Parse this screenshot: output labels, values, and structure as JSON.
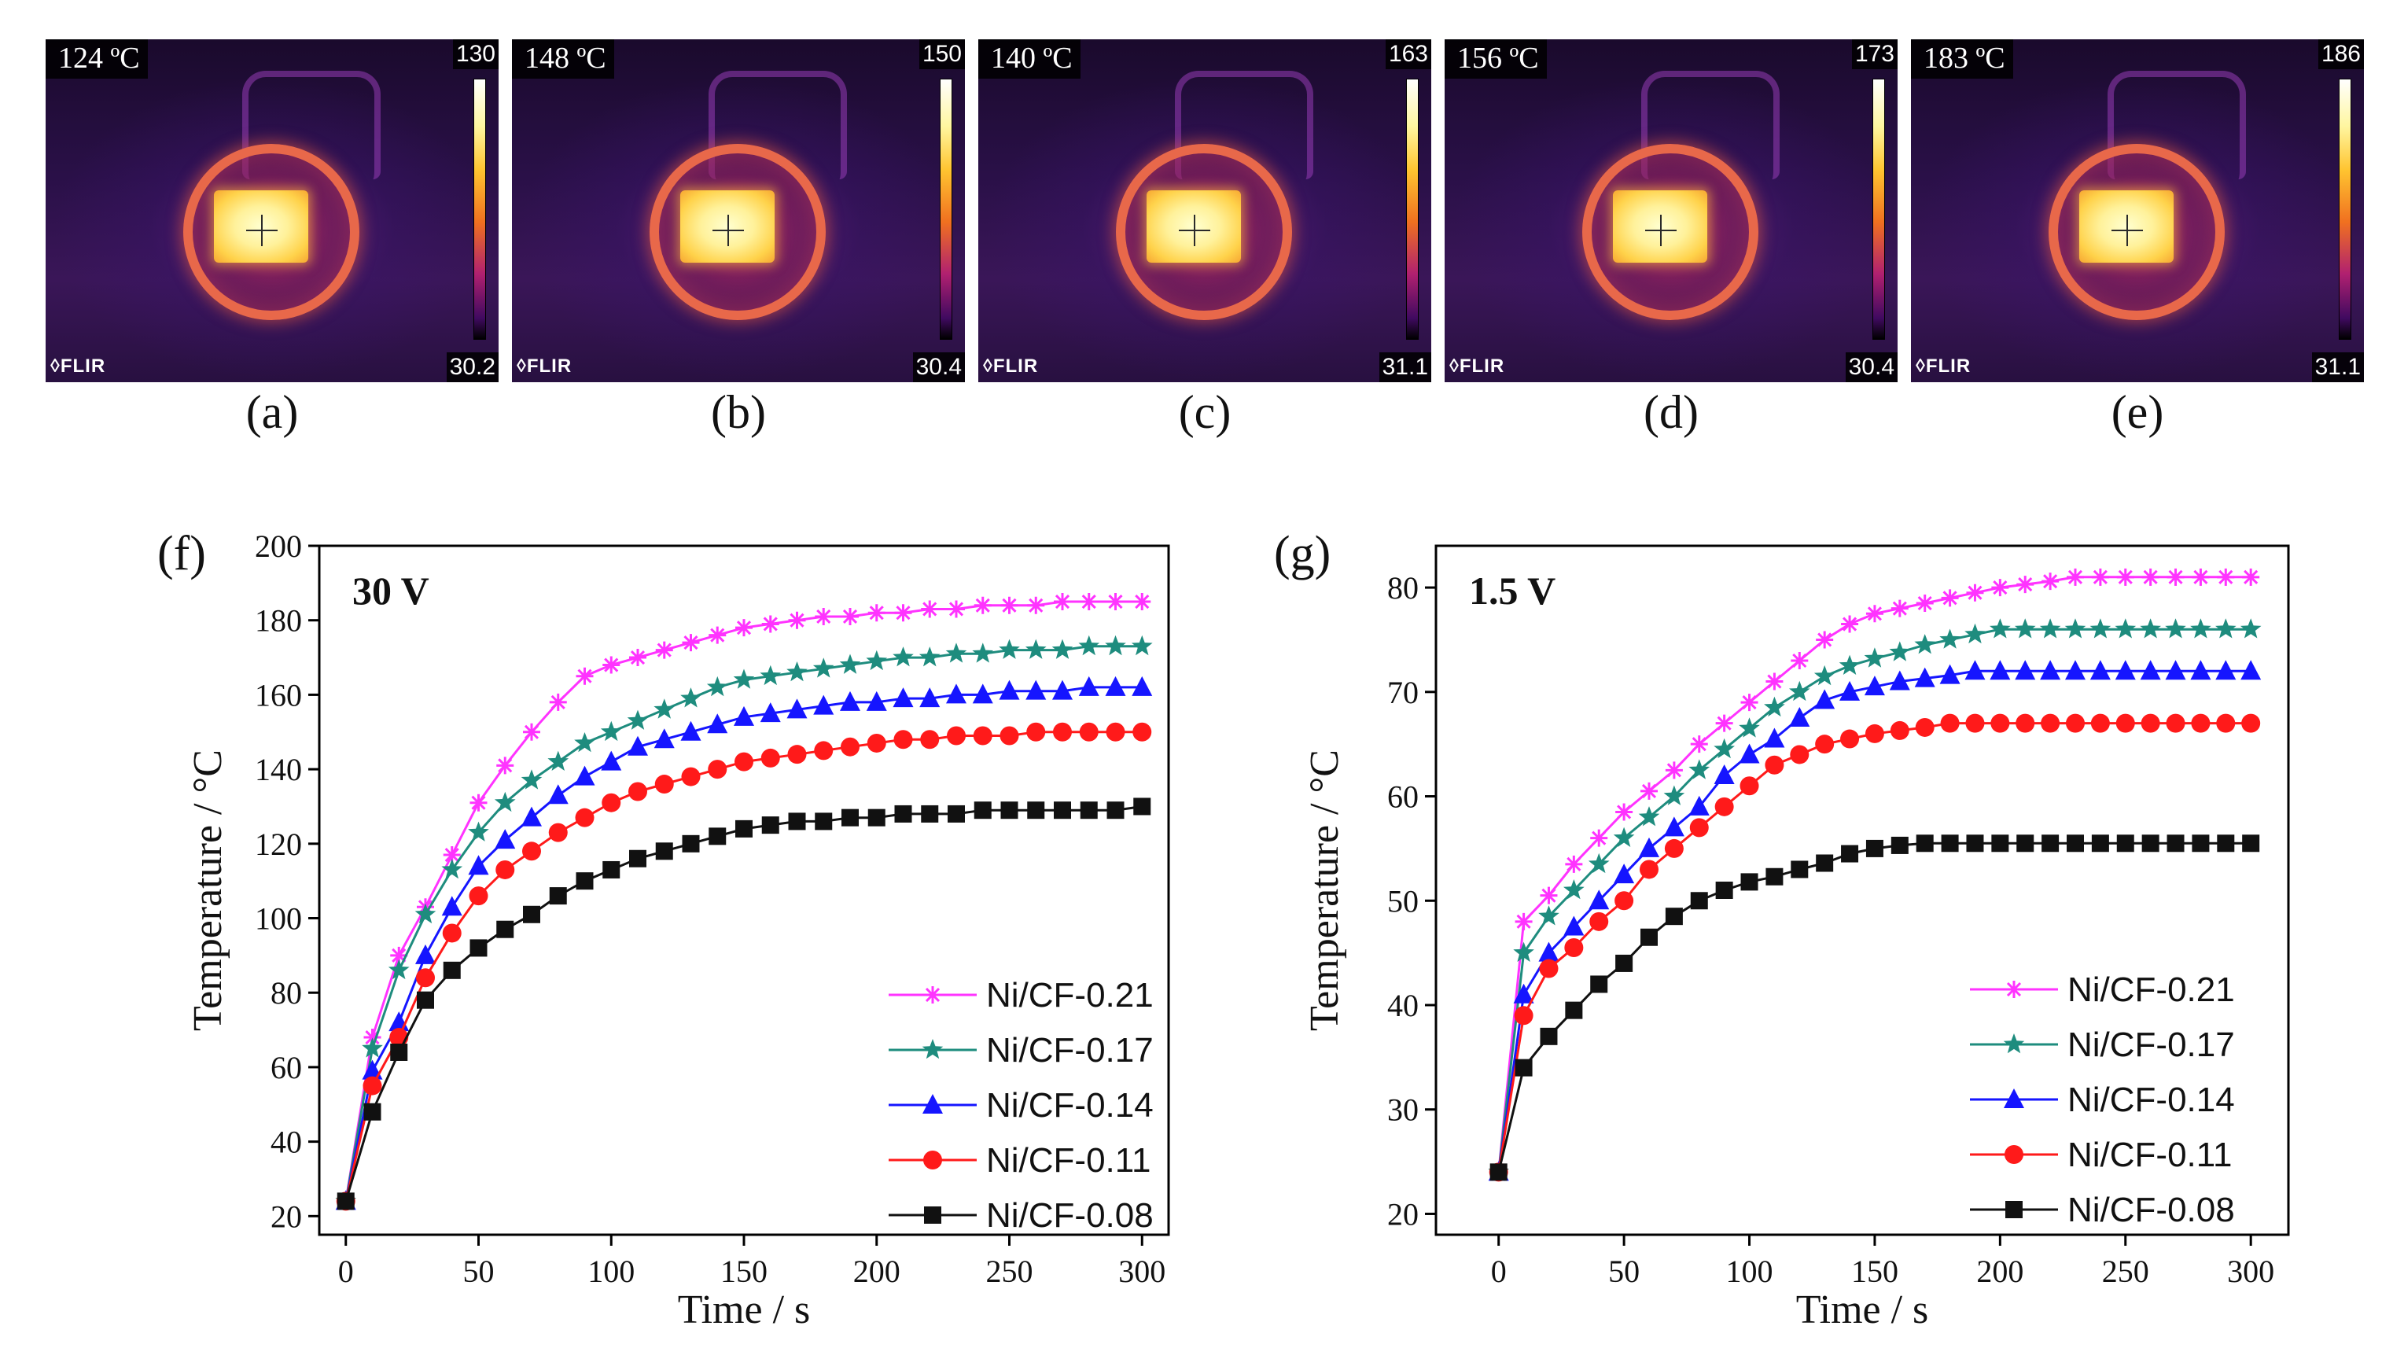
{
  "thermal_panels": [
    {
      "label": "(a)",
      "temp": "124 ºC",
      "max": "130",
      "min": "30.2",
      "logo": "FLIR"
    },
    {
      "label": "(b)",
      "temp": "148 ºC",
      "max": "150",
      "min": "30.4",
      "logo": "FLIR"
    },
    {
      "label": "(c)",
      "temp": "140 ºC",
      "max": "163",
      "min": "31.1",
      "logo": "FLIR"
    },
    {
      "label": "(d)",
      "temp": "156 ºC",
      "max": "173",
      "min": "30.4",
      "logo": "FLIR"
    },
    {
      "label": "(e)",
      "temp": "183 ºC",
      "max": "186",
      "min": "31.1",
      "logo": "FLIR"
    }
  ],
  "chart_data": [
    {
      "type": "line",
      "panel": "(f)",
      "title": "30 V",
      "xlabel": "Time / s",
      "ylabel": "Temperature / °C",
      "xlim": [
        -10,
        310
      ],
      "ylim": [
        15,
        200
      ],
      "xticks": [
        0,
        50,
        100,
        150,
        200,
        250,
        300
      ],
      "yticks": [
        20,
        40,
        60,
        80,
        100,
        120,
        140,
        160,
        180,
        200
      ],
      "legend_position": "bottom-right",
      "x": [
        0,
        10,
        20,
        30,
        40,
        50,
        60,
        70,
        80,
        90,
        100,
        110,
        120,
        130,
        140,
        150,
        160,
        170,
        180,
        190,
        200,
        210,
        220,
        230,
        240,
        250,
        260,
        270,
        280,
        290,
        300
      ],
      "series": [
        {
          "name": "Ni/CF-0.21",
          "color": "#ff33ff",
          "marker": "star",
          "values": [
            24,
            68,
            90,
            103,
            117,
            131,
            141,
            150,
            158,
            165,
            168,
            170,
            172,
            174,
            176,
            178,
            179,
            180,
            181,
            181,
            182,
            182,
            183,
            183,
            184,
            184,
            184,
            185,
            185,
            185,
            185
          ]
        },
        {
          "name": "Ni/CF-0.17",
          "color": "#1e8c7e",
          "marker": "pentagram",
          "values": [
            24,
            65,
            86,
            101,
            113,
            123,
            131,
            137,
            142,
            147,
            150,
            153,
            156,
            159,
            162,
            164,
            165,
            166,
            167,
            168,
            169,
            170,
            170,
            171,
            171,
            172,
            172,
            172,
            173,
            173,
            173
          ]
        },
        {
          "name": "Ni/CF-0.14",
          "color": "#1515ff",
          "marker": "triangle",
          "values": [
            24,
            59,
            72,
            90,
            103,
            114,
            121,
            127,
            133,
            138,
            142,
            146,
            148,
            150,
            152,
            154,
            155,
            156,
            157,
            158,
            158,
            159,
            159,
            160,
            160,
            161,
            161,
            161,
            162,
            162,
            162
          ]
        },
        {
          "name": "Ni/CF-0.11",
          "color": "#ff1a1a",
          "marker": "circle",
          "values": [
            24,
            55,
            68,
            84,
            96,
            106,
            113,
            118,
            123,
            127,
            131,
            134,
            136,
            138,
            140,
            142,
            143,
            144,
            145,
            146,
            147,
            148,
            148,
            149,
            149,
            149,
            150,
            150,
            150,
            150,
            150
          ]
        },
        {
          "name": "Ni/CF-0.08",
          "color": "#111111",
          "marker": "square",
          "values": [
            24,
            48,
            64,
            78,
            86,
            92,
            97,
            101,
            106,
            110,
            113,
            116,
            118,
            120,
            122,
            124,
            125,
            126,
            126,
            127,
            127,
            128,
            128,
            128,
            129,
            129,
            129,
            129,
            129,
            129,
            130
          ]
        }
      ]
    },
    {
      "type": "line",
      "panel": "(g)",
      "title": "1.5 V",
      "xlabel": "Time / s",
      "ylabel": "Temperature / °C",
      "xlim": [
        -25,
        315
      ],
      "ylim": [
        18,
        84
      ],
      "xticks": [
        0,
        50,
        100,
        150,
        200,
        250,
        300
      ],
      "yticks": [
        20,
        30,
        40,
        50,
        60,
        70,
        80
      ],
      "legend_position": "bottom-right",
      "x": [
        0,
        10,
        20,
        30,
        40,
        50,
        60,
        70,
        80,
        90,
        100,
        110,
        120,
        130,
        140,
        150,
        160,
        170,
        180,
        190,
        200,
        210,
        220,
        230,
        240,
        250,
        260,
        270,
        280,
        290,
        300
      ],
      "series": [
        {
          "name": "Ni/CF-0.21",
          "color": "#ff33ff",
          "marker": "star",
          "values": [
            24,
            48,
            50.5,
            53.5,
            56,
            58.5,
            60.5,
            62.5,
            65,
            67,
            69,
            71,
            73,
            75,
            76.5,
            77.5,
            78,
            78.5,
            79,
            79.5,
            80,
            80.3,
            80.6,
            81,
            81,
            81,
            81,
            81,
            81,
            81,
            81
          ]
        },
        {
          "name": "Ni/CF-0.17",
          "color": "#1e8c7e",
          "marker": "pentagram",
          "values": [
            24,
            45,
            48.5,
            51,
            53.5,
            56,
            58,
            60,
            62.5,
            64.5,
            66.5,
            68.5,
            70,
            71.5,
            72.5,
            73.2,
            73.8,
            74.5,
            75,
            75.5,
            76,
            76,
            76,
            76,
            76,
            76,
            76,
            76,
            76,
            76,
            76
          ]
        },
        {
          "name": "Ni/CF-0.14",
          "color": "#1515ff",
          "marker": "triangle",
          "values": [
            24,
            41,
            45,
            47.5,
            50,
            52.5,
            55,
            57,
            59,
            62,
            64,
            65.5,
            67.5,
            69.2,
            70,
            70.5,
            71,
            71.3,
            71.6,
            72,
            72,
            72,
            72,
            72,
            72,
            72,
            72,
            72,
            72,
            72,
            72
          ]
        },
        {
          "name": "Ni/CF-0.11",
          "color": "#ff1a1a",
          "marker": "circle",
          "values": [
            24,
            39,
            43.5,
            45.5,
            48,
            50,
            53,
            55,
            57,
            59,
            61,
            63,
            64,
            65,
            65.5,
            66,
            66.3,
            66.6,
            67,
            67,
            67,
            67,
            67,
            67,
            67,
            67,
            67,
            67,
            67,
            67,
            67
          ]
        },
        {
          "name": "Ni/CF-0.08",
          "color": "#111111",
          "marker": "square",
          "values": [
            24,
            34,
            37,
            39.5,
            42,
            44,
            46.5,
            48.5,
            50,
            51,
            51.8,
            52.3,
            53,
            53.6,
            54.5,
            55,
            55.3,
            55.5,
            55.5,
            55.5,
            55.5,
            55.5,
            55.5,
            55.5,
            55.5,
            55.5,
            55.5,
            55.5,
            55.5,
            55.5,
            55.5
          ]
        }
      ]
    }
  ]
}
